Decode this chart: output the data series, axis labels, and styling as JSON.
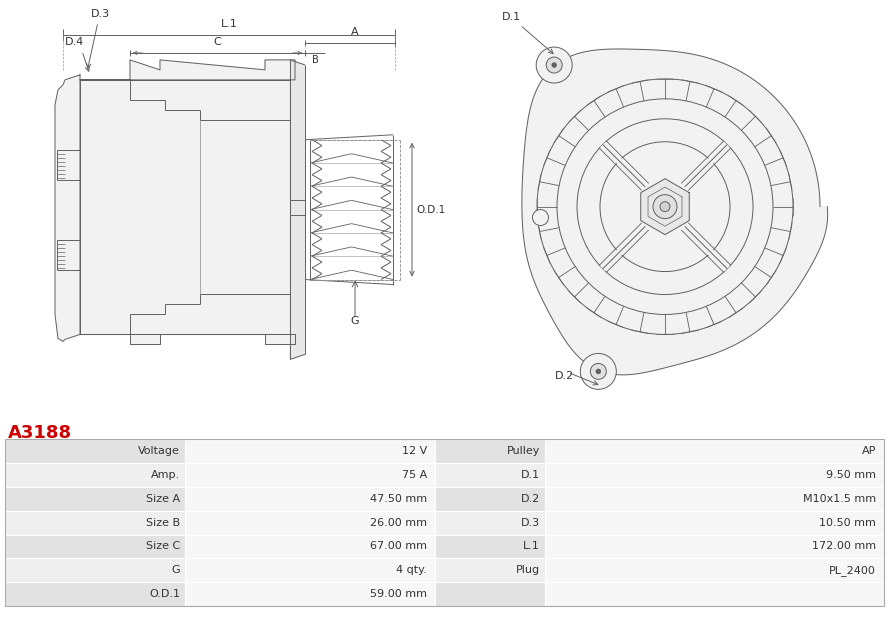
{
  "title": "A3188",
  "title_color": "#cc0000",
  "bg_color": "#ffffff",
  "table_row_bg1": "#e2e2e2",
  "table_row_bg2": "#efefef",
  "left_col_labels": [
    "Voltage",
    "Amp.",
    "Size A",
    "Size B",
    "Size C",
    "G",
    "O.D.1"
  ],
  "left_col_values": [
    "12 V",
    "75 A",
    "47.50 mm",
    "26.00 mm",
    "67.00 mm",
    "4 qty.",
    "59.00 mm"
  ],
  "right_col_labels": [
    "Pulley",
    "D.1",
    "D.2",
    "D.3",
    "L.1",
    "Plug",
    ""
  ],
  "right_col_values": [
    "AP",
    "9.50 mm",
    "M10x1.5 mm",
    "10.50 mm",
    "172.00 mm",
    "PL_2400",
    ""
  ]
}
